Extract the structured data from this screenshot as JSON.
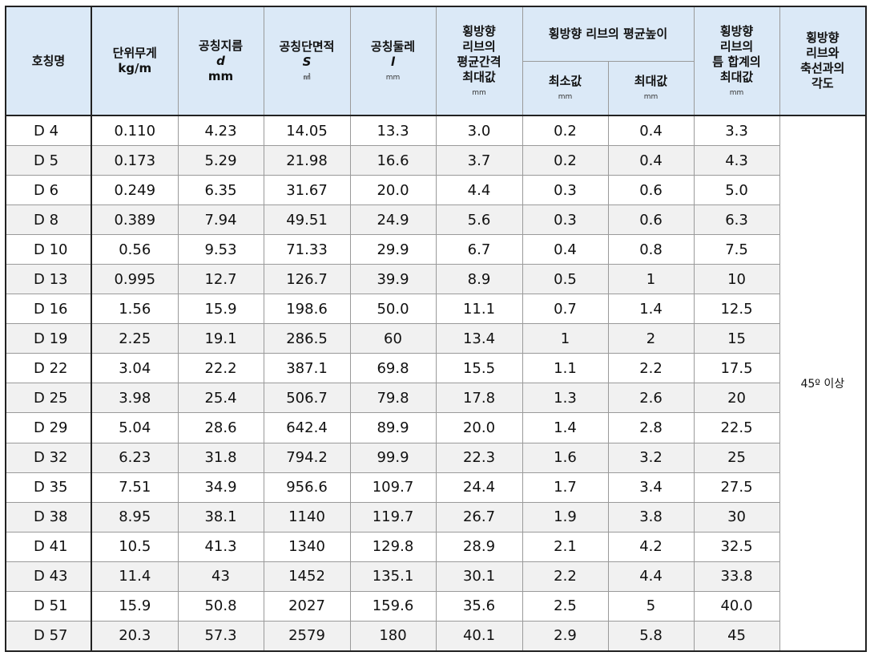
{
  "headers": {
    "name": "호칭명",
    "weight": {
      "label": "단위무게",
      "unit": "kg/m"
    },
    "diameter": {
      "label": "공칭지름",
      "symbol": "d",
      "unit": "mm"
    },
    "area": {
      "label": "공칭단면적",
      "symbol": "S",
      "unit": "㎟"
    },
    "perimeter": {
      "label": "공칭둘레",
      "symbol": "l",
      "unit": "mm"
    },
    "spacing": {
      "line1": "횡방향",
      "line2": "리브의",
      "line3": "평균간격",
      "line4": "최대값",
      "unit": "mm"
    },
    "rib_height": {
      "label": "횡방향 리브의 평균높이",
      "min": "최소값",
      "max": "최대값",
      "unit": "mm"
    },
    "gap": {
      "line1": "횡방향",
      "line2": "리브의",
      "line3": "틈 합계의",
      "line4": "최대값",
      "unit": "mm"
    },
    "angle": {
      "line1": "횡방향",
      "line2": "리브와",
      "line3": "축선과의",
      "line4": "각도"
    }
  },
  "angle_value": "45º 이상",
  "rows": [
    {
      "name": "D 4",
      "weight": "0.110",
      "d": "4.23",
      "s": "14.05",
      "l": "13.3",
      "spacing": "3.0",
      "hmin": "0.2",
      "hmax": "0.4",
      "gap": "3.3"
    },
    {
      "name": "D 5",
      "weight": "0.173",
      "d": "5.29",
      "s": "21.98",
      "l": "16.6",
      "spacing": "3.7",
      "hmin": "0.2",
      "hmax": "0.4",
      "gap": "4.3"
    },
    {
      "name": "D 6",
      "weight": "0.249",
      "d": "6.35",
      "s": "31.67",
      "l": "20.0",
      "spacing": "4.4",
      "hmin": "0.3",
      "hmax": "0.6",
      "gap": "5.0"
    },
    {
      "name": "D 8",
      "weight": "0.389",
      "d": "7.94",
      "s": "49.51",
      "l": "24.9",
      "spacing": "5.6",
      "hmin": "0.3",
      "hmax": "0.6",
      "gap": "6.3"
    },
    {
      "name": "D 10",
      "weight": "0.56",
      "d": "9.53",
      "s": "71.33",
      "l": "29.9",
      "spacing": "6.7",
      "hmin": "0.4",
      "hmax": "0.8",
      "gap": "7.5"
    },
    {
      "name": "D 13",
      "weight": "0.995",
      "d": "12.7",
      "s": "126.7",
      "l": "39.9",
      "spacing": "8.9",
      "hmin": "0.5",
      "hmax": "1",
      "gap": "10"
    },
    {
      "name": "D 16",
      "weight": "1.56",
      "d": "15.9",
      "s": "198.6",
      "l": "50.0",
      "spacing": "11.1",
      "hmin": "0.7",
      "hmax": "1.4",
      "gap": "12.5"
    },
    {
      "name": "D 19",
      "weight": "2.25",
      "d": "19.1",
      "s": "286.5",
      "l": "60",
      "spacing": "13.4",
      "hmin": "1",
      "hmax": "2",
      "gap": "15"
    },
    {
      "name": "D 22",
      "weight": "3.04",
      "d": "22.2",
      "s": "387.1",
      "l": "69.8",
      "spacing": "15.5",
      "hmin": "1.1",
      "hmax": "2.2",
      "gap": "17.5"
    },
    {
      "name": "D 25",
      "weight": "3.98",
      "d": "25.4",
      "s": "506.7",
      "l": "79.8",
      "spacing": "17.8",
      "hmin": "1.3",
      "hmax": "2.6",
      "gap": "20"
    },
    {
      "name": "D 29",
      "weight": "5.04",
      "d": "28.6",
      "s": "642.4",
      "l": "89.9",
      "spacing": "20.0",
      "hmin": "1.4",
      "hmax": "2.8",
      "gap": "22.5"
    },
    {
      "name": "D 32",
      "weight": "6.23",
      "d": "31.8",
      "s": "794.2",
      "l": "99.9",
      "spacing": "22.3",
      "hmin": "1.6",
      "hmax": "3.2",
      "gap": "25"
    },
    {
      "name": "D 35",
      "weight": "7.51",
      "d": "34.9",
      "s": "956.6",
      "l": "109.7",
      "spacing": "24.4",
      "hmin": "1.7",
      "hmax": "3.4",
      "gap": "27.5"
    },
    {
      "name": "D 38",
      "weight": "8.95",
      "d": "38.1",
      "s": "1140",
      "l": "119.7",
      "spacing": "26.7",
      "hmin": "1.9",
      "hmax": "3.8",
      "gap": "30"
    },
    {
      "name": "D 41",
      "weight": "10.5",
      "d": "41.3",
      "s": "1340",
      "l": "129.8",
      "spacing": "28.9",
      "hmin": "2.1",
      "hmax": "4.2",
      "gap": "32.5"
    },
    {
      "name": "D 43",
      "weight": "11.4",
      "d": "43",
      "s": "1452",
      "l": "135.1",
      "spacing": "30.1",
      "hmin": "2.2",
      "hmax": "4.4",
      "gap": "33.8"
    },
    {
      "name": "D 51",
      "weight": "15.9",
      "d": "50.8",
      "s": "2027",
      "l": "159.6",
      "spacing": "35.6",
      "hmin": "2.5",
      "hmax": "5",
      "gap": "40.0"
    },
    {
      "name": "D 57",
      "weight": "20.3",
      "d": "57.3",
      "s": "2579",
      "l": "180",
      "spacing": "40.1",
      "hmin": "2.9",
      "hmax": "5.8",
      "gap": "45"
    }
  ]
}
